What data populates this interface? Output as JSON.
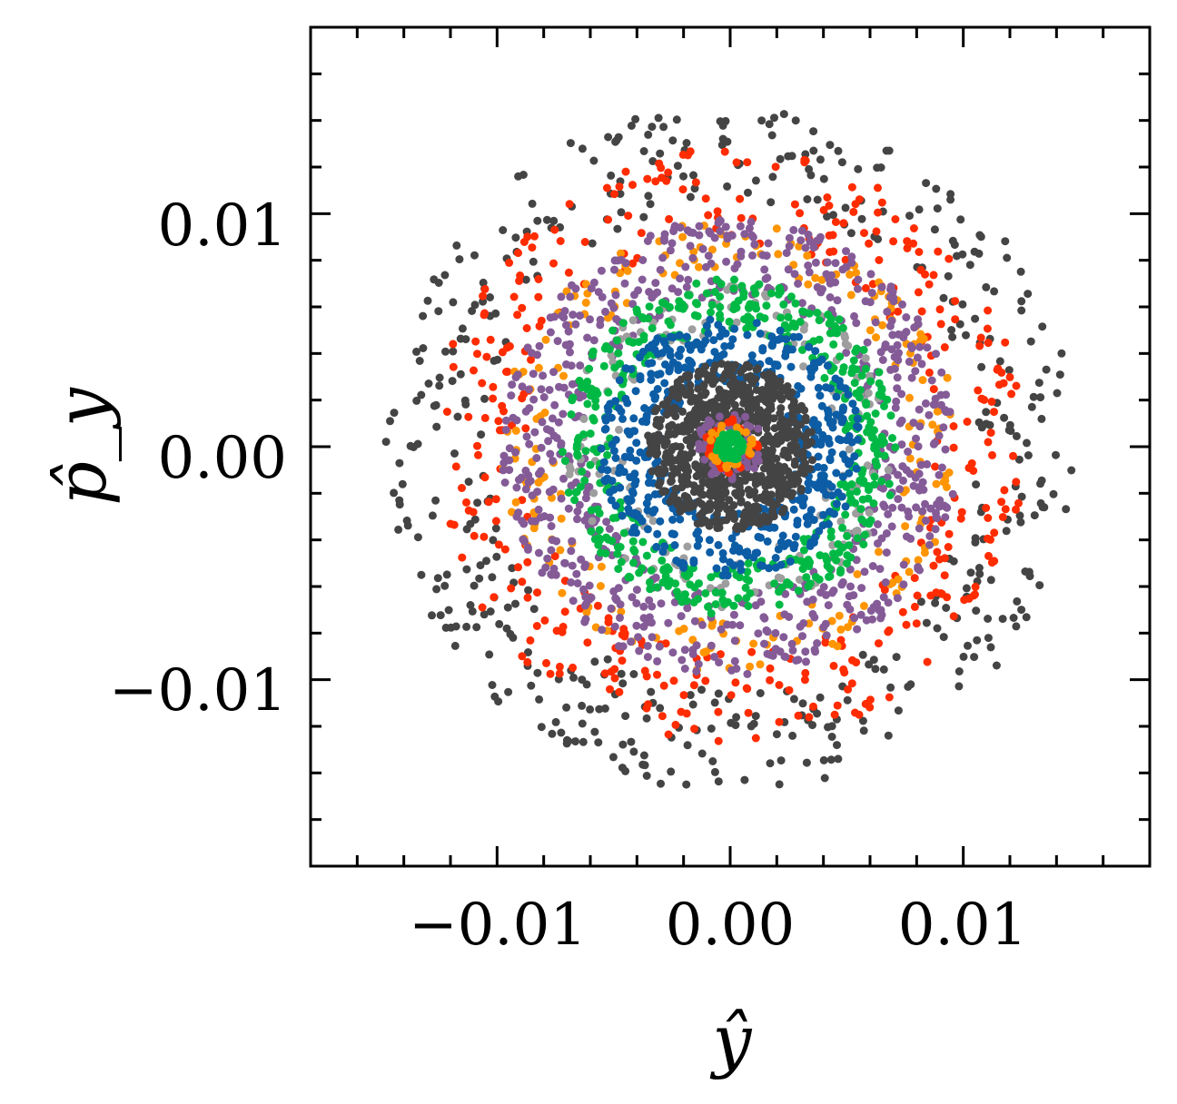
{
  "chart_data": {
    "type": "scatter",
    "title": "",
    "xlabel": "ŷ",
    "ylabel": "p̂_y",
    "xlim": [
      -0.018,
      0.018
    ],
    "ylim": [
      -0.018,
      0.018
    ],
    "xticks": [
      -0.01,
      0.0,
      0.01
    ],
    "yticks": [
      -0.01,
      0.0,
      0.01
    ],
    "xtick_labels": [
      "−0.01",
      "0.00",
      "0.01"
    ],
    "ytick_labels": [
      "−0.01",
      "0.00",
      "0.01"
    ],
    "minor_tick_step": 0.002,
    "grid": false,
    "legend": "none",
    "series": [
      {
        "color": "#444444",
        "ring": {
          "r_min": 0.0105,
          "r_max": 0.0148,
          "count": 460
        }
      },
      {
        "color": "#ff2c00",
        "ring": {
          "r_min": 0.0088,
          "r_max": 0.0128,
          "count": 380
        }
      },
      {
        "color": "#ff9500",
        "ring": {
          "r_min": 0.0075,
          "r_max": 0.0098,
          "count": 200
        }
      },
      {
        "color": "#845b97",
        "ring": {
          "r_min": 0.0062,
          "r_max": 0.0098,
          "count": 700
        }
      },
      {
        "color": "#9e9e9e",
        "ring": {
          "r_min": 0.0045,
          "r_max": 0.007,
          "count": 160
        }
      },
      {
        "color": "#00b945",
        "ring": {
          "r_min": 0.005,
          "r_max": 0.0072,
          "count": 480
        }
      },
      {
        "color": "#0c5da5",
        "ring": {
          "r_min": 0.0028,
          "r_max": 0.0056,
          "count": 500
        }
      },
      {
        "color": "#444444",
        "ring": {
          "r_min": 0.0008,
          "r_max": 0.0036,
          "count": 750
        }
      },
      {
        "color": "#845b97",
        "ring": {
          "r_min": 0.0004,
          "r_max": 0.0015,
          "count": 60
        }
      },
      {
        "color": "#ff2c00",
        "ring": {
          "r_min": 0.0004,
          "r_max": 0.0012,
          "count": 30
        }
      },
      {
        "color": "#ff9500",
        "ring": {
          "r_min": 0.0003,
          "r_max": 0.001,
          "count": 30
        }
      },
      {
        "color": "#00b945",
        "ring": {
          "r_min": 0.0,
          "r_max": 0.0006,
          "count": 60
        }
      }
    ]
  }
}
